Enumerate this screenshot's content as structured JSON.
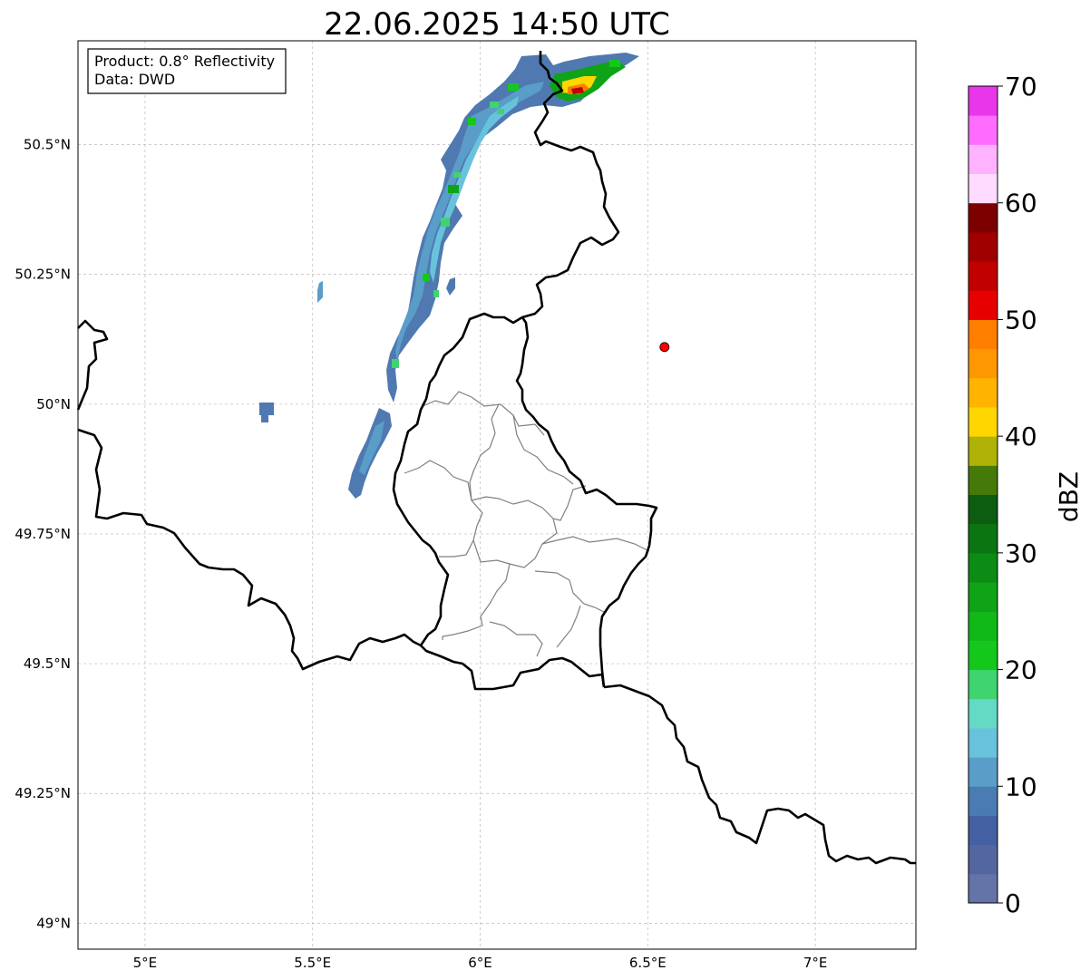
{
  "title": "22.06.2025 14:50 UTC",
  "info_box": {
    "product": "Product: 0.8° Reflectivity",
    "data": "Data: DWD"
  },
  "x_ticks": [
    "5°E",
    "5.5°E",
    "6°E",
    "6.5°E",
    "7°E"
  ],
  "y_ticks": [
    "50.5°N",
    "50.25°N",
    "50°N",
    "49.75°N",
    "49.5°N",
    "49.25°N",
    "49°N"
  ],
  "colorbar": {
    "label": "dBZ",
    "ticks": [
      "0",
      "10",
      "20",
      "30",
      "40",
      "50",
      "60",
      "70"
    ],
    "min": 0,
    "max": 70,
    "step": 2.5,
    "colors": [
      "#6473a8",
      "#5466a0",
      "#4361a2",
      "#4a7bb2",
      "#5a9dc8",
      "#68c2dc",
      "#64d9c4",
      "#3fd46f",
      "#13c81b",
      "#10b818",
      "#0fa317",
      "#0c8c14",
      "#0b7512",
      "#0c5d0f",
      "#457a08",
      "#afb207",
      "#ffd600",
      "#ffb500",
      "#ff9800",
      "#ff7e00",
      "#e60000",
      "#c10000",
      "#a00000",
      "#7c0000",
      "#ffdcff",
      "#ffb2ff",
      "#ff6cff",
      "#ea36ea"
    ]
  },
  "map": {
    "lon_range": [
      4.8,
      7.3
    ],
    "lat_range": [
      48.95,
      50.7
    ],
    "marker": {
      "lon": 6.55,
      "lat": 50.11,
      "color": "#ff0000"
    },
    "colors": {
      "border": "#000000",
      "admin": "#808080",
      "grid": "#bbbbbb"
    }
  }
}
